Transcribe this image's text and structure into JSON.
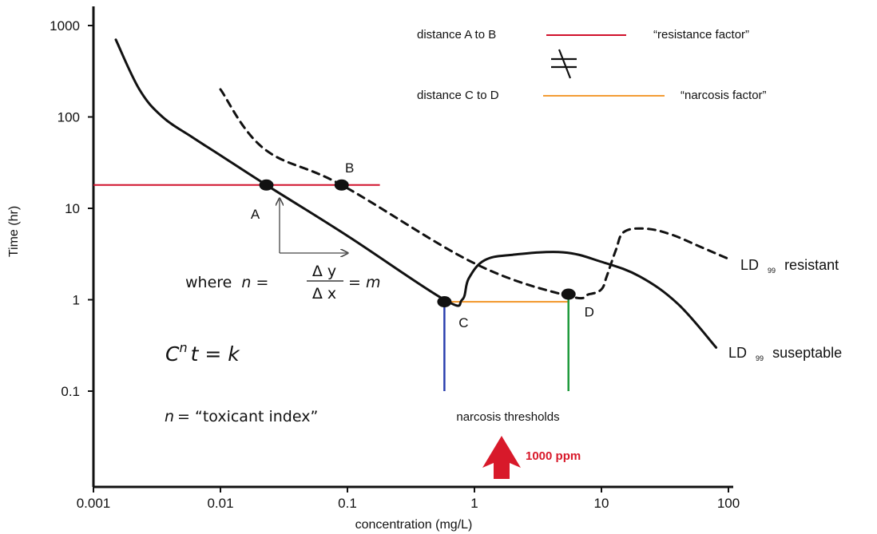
{
  "chart_data": {
    "type": "line",
    "xscale": "log",
    "yscale": "log",
    "xlim": [
      0.001,
      100
    ],
    "ylim": [
      0.01,
      1000
    ],
    "xlabel": "concentration  (mg/L)",
    "ylabel": "Time (hr)",
    "x_ticks": [
      "0.001",
      "0.01",
      "0.1",
      "1",
      "10",
      "100"
    ],
    "y_ticks": [
      "0.1",
      "1",
      "10",
      "100",
      "1000"
    ],
    "series": [
      {
        "name": "LD 99 suseptable",
        "label_main": "LD",
        "label_sub": "99",
        "label_rest": "suseptable",
        "style": "solid",
        "points": [
          [
            0.0015,
            700
          ],
          [
            0.0023,
            200
          ],
          [
            0.0035,
            100
          ],
          [
            0.006,
            60
          ],
          [
            0.01,
            38
          ],
          [
            0.023,
            18
          ],
          [
            0.1,
            5
          ],
          [
            0.58,
            1
          ],
          [
            0.8,
            1.0
          ],
          [
            0.9,
            1.7
          ],
          [
            1.2,
            2.7
          ],
          [
            2,
            3.1
          ],
          [
            5,
            3.3
          ],
          [
            10,
            2.6
          ],
          [
            20,
            1.8
          ],
          [
            40,
            0.9
          ],
          [
            80,
            0.3
          ]
        ]
      },
      {
        "name": "LD 99 resistant",
        "label_main": "LD",
        "label_sub": "99",
        "label_rest": "resistant",
        "style": "dashed",
        "points": [
          [
            0.01,
            200
          ],
          [
            0.022,
            45
          ],
          [
            0.09,
            18
          ],
          [
            1,
            2.5
          ],
          [
            5.5,
            1.1
          ],
          [
            8,
            1.15
          ],
          [
            10,
            1.3
          ],
          [
            11,
            1.8
          ],
          [
            13,
            3.5
          ],
          [
            15,
            5.5
          ],
          [
            22,
            6.0
          ],
          [
            35,
            5.2
          ],
          [
            60,
            3.8
          ],
          [
            100,
            2.8
          ]
        ]
      }
    ],
    "points": [
      {
        "label": "A",
        "x": 0.023,
        "y": 18
      },
      {
        "label": "B",
        "x": 0.09,
        "y": 18
      },
      {
        "label": "C",
        "x": 0.58,
        "y": 0.95
      },
      {
        "label": "D",
        "x": 5.5,
        "y": 1.15
      }
    ],
    "annotations": {
      "resistance_line": {
        "y": 18,
        "x": [
          0.001,
          0.18
        ],
        "color": "#d0112b"
      },
      "narcosis_line": {
        "y": 0.95,
        "x": [
          0.58,
          5.5
        ],
        "color": "#f39c35"
      },
      "threshold_C": {
        "x": 0.58,
        "y": [
          0.1,
          0.95
        ],
        "color": "#2a3fae"
      },
      "threshold_D": {
        "x": 5.5,
        "y": [
          0.1,
          1.15
        ],
        "color": "#1f9a3c"
      },
      "slope_arrows": {
        "origin": [
          0.025,
          3
        ],
        "x_end": 0.08,
        "y_end": 12
      }
    }
  },
  "legend": {
    "row1_label": "distance A to B",
    "row1_color": "#d0112b",
    "row1_name": "“resistance factor”",
    "row2_label": "distance C to D",
    "row2_color": "#f39c35",
    "row2_name": "“narcosis factor”"
  },
  "formulas": {
    "where": "where",
    "n": "n",
    "eq1": " = ",
    "numerator": "Δ y",
    "denominator": "Δ x",
    "eq2": "= ",
    "m": "m",
    "main_C": "C",
    "main_n": "n",
    "main_t": "t = k",
    "toxicant": "= “toxicant index”"
  },
  "thresholds_label": "narcosis thresholds",
  "ppm_label": "1000 ppm",
  "ppm_color": "#d8192a"
}
